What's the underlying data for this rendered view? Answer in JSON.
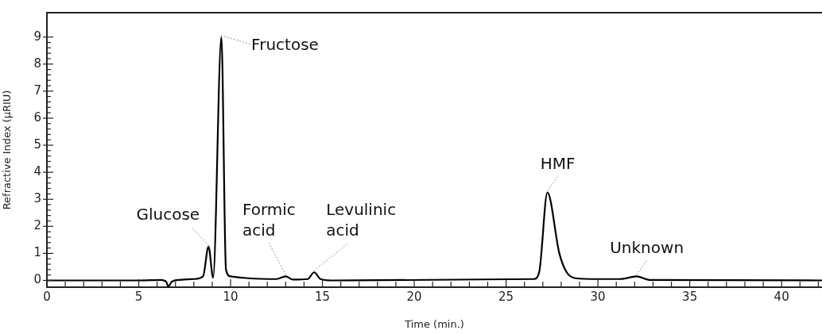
{
  "chart_data": {
    "type": "line",
    "xlabel": "Time (min.)",
    "ylabel": "Refractive Index (µRIU)",
    "x": [
      0,
      5,
      6.2,
      6.5,
      6.6,
      6.8,
      7.2,
      8.0,
      8.5,
      8.8,
      9.05,
      9.5,
      9.75,
      10.0,
      11,
      12.5,
      13.0,
      13.4,
      14.2,
      14.55,
      14.9,
      15.5,
      26.5,
      26.8,
      27.25,
      27.9,
      28.3,
      28.8,
      30,
      31.2,
      32.1,
      32.8,
      42.2
    ],
    "series": [
      {
        "color": "#000000",
        "values": [
          0,
          0,
          0.02,
          -0.05,
          -0.22,
          -0.05,
          0.02,
          0.05,
          0.15,
          1.25,
          0.1,
          9.0,
          0.4,
          0.15,
          0.08,
          0.05,
          0.15,
          0.03,
          0.05,
          0.3,
          0.05,
          0,
          0.05,
          0.3,
          3.25,
          1.0,
          0.3,
          0.08,
          0.05,
          0.05,
          0.15,
          0.02,
          0
        ]
      }
    ],
    "xlim": [
      0,
      42.2
    ],
    "ylim": [
      -0.25,
      9.9
    ],
    "xticks": [
      0,
      {
        "value": 1,
        "label": null
      },
      {
        "value": 2,
        "label": null
      },
      {
        "value": 3,
        "label": null
      },
      {
        "value": 4,
        "label": null
      },
      5,
      {
        "value": 6,
        "label": null
      },
      {
        "value": 7,
        "label": null
      },
      {
        "value": 8,
        "label": null
      },
      {
        "value": 9,
        "label": null
      },
      10,
      {
        "value": 11,
        "label": null
      },
      {
        "value": 12,
        "label": null
      },
      {
        "value": 13,
        "label": null
      },
      {
        "value": 14,
        "label": null
      },
      15,
      {
        "value": 16,
        "label": null
      },
      {
        "value": 17,
        "label": null
      },
      {
        "value": 18,
        "label": null
      },
      {
        "value": 19,
        "label": null
      },
      20,
      {
        "value": 21,
        "label": null
      },
      {
        "value": 22,
        "label": null
      },
      {
        "value": 23,
        "label": null
      },
      {
        "value": 24,
        "label": null
      },
      25,
      {
        "value": 26,
        "label": null
      },
      {
        "value": 27,
        "label": null
      },
      {
        "value": 28,
        "label": null
      },
      {
        "value": 29,
        "label": null
      },
      30,
      {
        "value": 31,
        "label": null
      },
      {
        "value": 32,
        "label": null
      },
      {
        "value": 33,
        "label": null
      },
      {
        "value": 34,
        "label": null
      },
      35,
      {
        "value": 36,
        "label": null
      },
      {
        "value": 37,
        "label": null
      },
      {
        "value": 38,
        "label": null
      },
      {
        "value": 39,
        "label": null
      },
      40,
      {
        "value": 41,
        "label": null
      },
      {
        "value": 42,
        "label": null
      }
    ],
    "yticks": [
      0,
      1,
      2,
      3,
      4,
      5,
      6,
      7,
      8,
      9
    ],
    "annotations": [
      {
        "text": "Glucose",
        "x": 8.8,
        "y": 1.25
      },
      {
        "text": "Fructose",
        "x": 9.5,
        "y": 9.0
      },
      {
        "text": "Formic acid",
        "x": 13.0,
        "y": 0.15
      },
      {
        "text": "Levulinic acid",
        "x": 14.55,
        "y": 0.3
      },
      {
        "text": "HMF",
        "x": 27.25,
        "y": 3.25
      },
      {
        "text": "Unknown",
        "x": 32.1,
        "y": 0.15
      }
    ],
    "grid": false,
    "legend": false,
    "marker": "none",
    "line_style": "solid"
  }
}
